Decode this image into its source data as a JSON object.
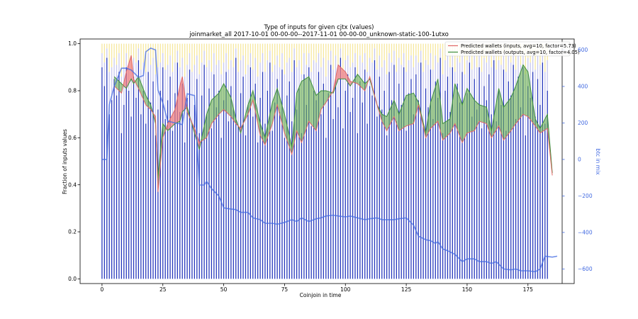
{
  "chart_data": {
    "type": "bar",
    "title": "Type of inputs for given cjtx (values)",
    "subtitle": "joinmarket_all 2017-10-01 00-00-00--2017-11-01 00-00-00_unknown-static-100-1utxo",
    "xlabel": "Coinjoin in time",
    "ylabel": "Fraction of inputs values",
    "y2label": "btc in mix",
    "xlim": [
      -9,
      194
    ],
    "ylim": [
      -0.02,
      1.02
    ],
    "y2lim": [
      -680,
      660
    ],
    "xticks": [
      0,
      25,
      50,
      75,
      100,
      125,
      150,
      175
    ],
    "yticks": [
      0.0,
      0.2,
      0.4,
      0.6,
      0.8,
      1.0
    ],
    "y2ticks": [
      -600,
      -400,
      -200,
      0,
      200,
      400,
      600
    ],
    "legend_position": "top-right",
    "colors": {
      "bar_fresh": "#2233bb",
      "bar_remix": "#c6c6ee",
      "bar_other": "#f3df7a",
      "inputs_line": "#e06666",
      "inputs_fill": "#f08080",
      "outputs_line": "#3c8d3c",
      "outputs_fill": "#6ab04c",
      "btc_line": "#4169e1"
    },
    "bars": {
      "description_values": "per coinjoin: fraction of input value (0-1) as bar height; three input categories stacked",
      "fresh_fraction": [
        0.9,
        0.82,
        0.94,
        0.7,
        0.76,
        0.85,
        0.78,
        0.88,
        0.62,
        0.74,
        0.9,
        0.8,
        0.69,
        0.86,
        0.77,
        0.93,
        0.7,
        0.8,
        0.66,
        0.88,
        0.75,
        0.84,
        0.61,
        0.72,
        0.8,
        0.9,
        0.68,
        0.76,
        0.86,
        0.63,
        0.79,
        0.92,
        0.71,
        0.83,
        0.58,
        0.77,
        0.89,
        0.66,
        0.74,
        0.85,
        0.62,
        0.78,
        0.91,
        0.7,
        0.81,
        0.64,
        0.87,
        0.73,
        0.8,
        0.6,
        0.76,
        0.88,
        0.67,
        0.82,
        0.72,
        0.94,
        0.65,
        0.79,
        0.86,
        0.61,
        0.74,
        0.9,
        0.69,
        0.83,
        0.58,
        0.77,
        0.88,
        0.66,
        0.8,
        0.92,
        0.63,
        0.75,
        0.85,
        0.71,
        0.89,
        0.6,
        0.78,
        0.84,
        0.67,
        0.93,
        0.72,
        0.81,
        0.62,
        0.87,
        0.74,
        0.9,
        0.65,
        0.8,
        0.76,
        0.88,
        0.7,
        0.83,
        0.6,
        0.79,
        0.91,
        0.68,
        0.85,
        0.73,
        0.94,
        0.64,
        0.8,
        0.87,
        0.71,
        0.77,
        0.9,
        0.62,
        0.84,
        0.75,
        0.89,
        0.66,
        0.82,
        0.78,
        0.93,
        0.69,
        0.86,
        0.72,
        0.8,
        0.61,
        0.88,
        0.76,
        0.91,
        0.67,
        0.83,
        0.74,
        0.9,
        0.63,
        0.79,
        0.85,
        0.7,
        0.87,
        0.76,
        0.92,
        0.65,
        0.81,
        0.73,
        0.89,
        0.68,
        0.84,
        0.77,
        0.94,
        0.62,
        0.8,
        0.86,
        0.71,
        0.9,
        0.66,
        0.83,
        0.75,
        0.88,
        0.6,
        0.79,
        0.92,
        0.69,
        0.85,
        0.72,
        0.9,
        0.64,
        0.82,
        0.76,
        0.87,
        0.7,
        0.93,
        0.67,
        0.8,
        0.74,
        0.89,
        0.63,
        0.84,
        0.78,
        0.91,
        0.68,
        0.86,
        0.73,
        0.9,
        0.61,
        0.82,
        0.77,
        0.88,
        0.69,
        0.85,
        0.74,
        0.92,
        0.66,
        0.8
      ],
      "remix_fraction": [
        0.06,
        0.1,
        0.04,
        0.18,
        0.14,
        0.09,
        0.13,
        0.08,
        0.24,
        0.16,
        0.06,
        0.12,
        0.2,
        0.08,
        0.15,
        0.05,
        0.19,
        0.12,
        0.22,
        0.08,
        0.16,
        0.1,
        0.26,
        0.18,
        0.12,
        0.06,
        0.21,
        0.15,
        0.09,
        0.25,
        0.13,
        0.05,
        0.19,
        0.11,
        0.28,
        0.14,
        0.07,
        0.22,
        0.17,
        0.1,
        0.25,
        0.14,
        0.06,
        0.2,
        0.12,
        0.24,
        0.09,
        0.18,
        0.13,
        0.27,
        0.16,
        0.08,
        0.22,
        0.11,
        0.18,
        0.04,
        0.23,
        0.14,
        0.09,
        0.26,
        0.17,
        0.06,
        0.2,
        0.11,
        0.28,
        0.15,
        0.08,
        0.22,
        0.13,
        0.05,
        0.25,
        0.16,
        0.1,
        0.19,
        0.07,
        0.27,
        0.14,
        0.1,
        0.21,
        0.05,
        0.18,
        0.12,
        0.25,
        0.09,
        0.17,
        0.06,
        0.23,
        0.13,
        0.16,
        0.08,
        0.2,
        0.11,
        0.26,
        0.14,
        0.06,
        0.21,
        0.1,
        0.18,
        0.04,
        0.24,
        0.13,
        0.08,
        0.19,
        0.15,
        0.06,
        0.25,
        0.11,
        0.17,
        0.07,
        0.22,
        0.12,
        0.14,
        0.05,
        0.2,
        0.09,
        0.18,
        0.13,
        0.26,
        0.08,
        0.16,
        0.06,
        0.21,
        0.11,
        0.17,
        0.06,
        0.25,
        0.14,
        0.1,
        0.2,
        0.08,
        0.16,
        0.05,
        0.23,
        0.12,
        0.18,
        0.07,
        0.21,
        0.11,
        0.15,
        0.04,
        0.25,
        0.13,
        0.09,
        0.19,
        0.06,
        0.22,
        0.11,
        0.17,
        0.08,
        0.27,
        0.14,
        0.05,
        0.2,
        0.1,
        0.18,
        0.06,
        0.24,
        0.12,
        0.16,
        0.09,
        0.2,
        0.05,
        0.22,
        0.13,
        0.17,
        0.07,
        0.25,
        0.11,
        0.14,
        0.06,
        0.21,
        0.09,
        0.18,
        0.06,
        0.26,
        0.12,
        0.15,
        0.08,
        0.2,
        0.1,
        0.17,
        0.05,
        0.22,
        0.13
      ]
    },
    "series": [
      {
        "name": "Predicted wallets (inputs, avg=10, factor=5.73)",
        "x": [
          0,
          5,
          8,
          10,
          12,
          13,
          15,
          18,
          20,
          22,
          23,
          25,
          27,
          30,
          32,
          33,
          35,
          38,
          40,
          43,
          45,
          48,
          50,
          53,
          55,
          57,
          60,
          62,
          65,
          67,
          70,
          72,
          75,
          78,
          80,
          82,
          85,
          88,
          90,
          92,
          95,
          97,
          100,
          102,
          105,
          108,
          110,
          113,
          115,
          117,
          120,
          122,
          125,
          128,
          130,
          133,
          135,
          138,
          140,
          143,
          145,
          148,
          150,
          153,
          155,
          158,
          160,
          163,
          165,
          168,
          170,
          173,
          175,
          178,
          180,
          183,
          185,
          187
        ],
        "values": [
          null,
          0.82,
          0.79,
          0.88,
          0.95,
          0.85,
          0.81,
          0.74,
          0.72,
          0.69,
          0.37,
          0.6,
          0.66,
          0.72,
          0.82,
          0.86,
          0.71,
          0.64,
          0.58,
          0.6,
          0.66,
          0.7,
          0.72,
          0.69,
          0.66,
          0.64,
          0.7,
          0.76,
          0.61,
          0.57,
          0.66,
          0.74,
          0.62,
          0.53,
          0.63,
          0.58,
          0.67,
          0.63,
          0.72,
          0.75,
          0.8,
          0.91,
          0.88,
          0.84,
          0.83,
          0.8,
          0.86,
          0.74,
          0.67,
          0.63,
          0.69,
          0.63,
          0.65,
          0.66,
          0.74,
          0.6,
          0.64,
          0.67,
          0.59,
          0.62,
          0.66,
          0.58,
          0.62,
          0.63,
          0.67,
          0.66,
          0.6,
          0.65,
          0.59,
          0.63,
          0.66,
          0.7,
          0.69,
          0.65,
          0.62,
          0.64,
          0.44,
          null
        ]
      },
      {
        "name": "Predicted wallets (outputs, avg=10, factor=4.05)",
        "x": [
          0,
          5,
          8,
          10,
          12,
          13,
          15,
          18,
          20,
          22,
          23,
          25,
          27,
          30,
          32,
          33,
          35,
          38,
          40,
          43,
          45,
          48,
          50,
          53,
          55,
          57,
          60,
          62,
          65,
          67,
          70,
          72,
          75,
          78,
          80,
          82,
          85,
          88,
          90,
          92,
          95,
          97,
          100,
          102,
          105,
          108,
          110,
          113,
          115,
          117,
          120,
          122,
          125,
          128,
          130,
          133,
          135,
          138,
          140,
          143,
          145,
          148,
          150,
          153,
          155,
          158,
          160,
          163,
          165,
          168,
          170,
          173,
          175,
          178,
          180,
          183,
          185,
          187
        ],
        "values": [
          null,
          0.86,
          0.83,
          0.81,
          0.85,
          0.83,
          0.86,
          0.78,
          0.74,
          0.66,
          0.43,
          0.66,
          0.63,
          0.66,
          0.67,
          0.71,
          0.73,
          0.62,
          0.55,
          0.7,
          0.76,
          0.79,
          0.83,
          0.77,
          0.68,
          0.62,
          0.74,
          0.8,
          0.66,
          0.6,
          0.75,
          0.81,
          0.7,
          0.56,
          0.79,
          0.84,
          0.86,
          0.78,
          0.8,
          0.8,
          0.79,
          0.85,
          0.85,
          0.82,
          0.87,
          0.83,
          0.85,
          0.74,
          0.7,
          0.69,
          0.76,
          0.7,
          0.78,
          0.79,
          0.75,
          0.62,
          0.75,
          0.85,
          0.66,
          0.68,
          0.83,
          0.74,
          0.81,
          0.76,
          0.74,
          0.73,
          0.63,
          0.81,
          0.73,
          0.77,
          0.82,
          0.91,
          0.88,
          0.68,
          0.64,
          0.7,
          0.45,
          null
        ]
      },
      {
        "name": "btc in mix",
        "axis": "right",
        "x": [
          0,
          2,
          3,
          5,
          8,
          10,
          12,
          15,
          17,
          18,
          20,
          22,
          23,
          25,
          27,
          30,
          32,
          33,
          35,
          38,
          40,
          41,
          42,
          43,
          45,
          48,
          50,
          52,
          55,
          57,
          60,
          62,
          65,
          67,
          70,
          72,
          75,
          78,
          80,
          82,
          85,
          88,
          90,
          92,
          95,
          97,
          100,
          102,
          105,
          108,
          110,
          113,
          115,
          117,
          120,
          122,
          125,
          128,
          130,
          133,
          135,
          137,
          138,
          140,
          142,
          145,
          148,
          150,
          153,
          155,
          158,
          160,
          162,
          165,
          168,
          170,
          172,
          175,
          178,
          180,
          182,
          185,
          187
        ],
        "values": [
          0,
          0,
          300,
          400,
          500,
          500,
          490,
          450,
          460,
          590,
          610,
          600,
          380,
          310,
          210,
          200,
          195,
          190,
          360,
          350,
          -140,
          -140,
          -140,
          -120,
          -160,
          -200,
          -265,
          -270,
          -275,
          -290,
          -290,
          -320,
          -330,
          -350,
          -350,
          -355,
          -345,
          -330,
          -340,
          -320,
          -340,
          -325,
          -320,
          -310,
          -305,
          -310,
          -315,
          -310,
          -320,
          -330,
          -325,
          -320,
          -330,
          -330,
          -330,
          -325,
          -320,
          -360,
          -420,
          -440,
          -445,
          -460,
          -450,
          -490,
          -500,
          -520,
          -560,
          -545,
          -545,
          -560,
          -560,
          -570,
          -560,
          -600,
          -605,
          -600,
          -610,
          -610,
          -615,
          -600,
          -530,
          -535,
          -530
        ]
      }
    ]
  },
  "legend": [
    "Predicted wallets (inputs, avg=10, factor=5.73)",
    "Predicted wallets (outputs, avg=10, factor=4.05)"
  ]
}
